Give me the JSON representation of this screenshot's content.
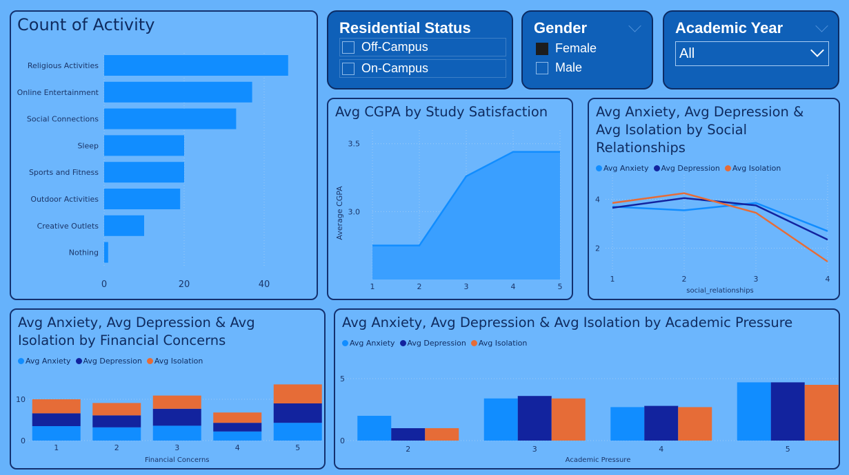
{
  "colors": {
    "anxiety": "#118dff",
    "depression": "#12239e",
    "isolation": "#e66c37",
    "bar": "#118dff",
    "area": "#3a9fff"
  },
  "slicers": {
    "residential": {
      "title": "Residential Status",
      "options": [
        "Off-Campus",
        "On-Campus"
      ]
    },
    "gender": {
      "title": "Gender",
      "options": [
        "Female",
        "Male"
      ],
      "selected": "Female"
    },
    "academic_year": {
      "title": "Academic Year",
      "value": "All"
    }
  },
  "chart_data": [
    {
      "id": "activity",
      "type": "bar",
      "title": "Count of Activity",
      "categories": [
        "Religious Activities",
        "Online Entertainment",
        "Social Connections",
        "Sleep",
        "Sports and Fitness",
        "Outdoor Activities",
        "Creative Outlets",
        "Nothing"
      ],
      "values": [
        46,
        37,
        33,
        20,
        20,
        19,
        10,
        1
      ],
      "xticks": [
        "0",
        "20",
        "40"
      ],
      "xlim": [
        0,
        50
      ]
    },
    {
      "id": "cgpa",
      "type": "area",
      "title": "Avg CGPA by Study Satisfaction",
      "ylabel": "Average CGPA",
      "x": [
        "1",
        "2",
        "3",
        "4",
        "5"
      ],
      "values": [
        2.75,
        2.75,
        3.26,
        3.44,
        3.44
      ],
      "yticks": [
        "3.0",
        "3.5"
      ],
      "ylim": [
        2.5,
        3.6
      ]
    },
    {
      "id": "social",
      "type": "line",
      "title": "Avg Anxiety, Avg Depression & Avg Isolation by Social Relationships",
      "title_lines": [
        "Avg Anxiety, Avg Depression &",
        "Avg Isolation by Social",
        "Relationships"
      ],
      "xlabel": "social_relationships",
      "x": [
        "1",
        "2",
        "3",
        "4"
      ],
      "yticks": [
        "2",
        "4"
      ],
      "ylim": [
        1,
        5
      ],
      "series": [
        {
          "name": "Avg Anxiety",
          "values": [
            3.7,
            3.55,
            3.85,
            2.7
          ]
        },
        {
          "name": "Avg Depression",
          "values": [
            3.65,
            4.05,
            3.75,
            2.35
          ]
        },
        {
          "name": "Avg Isolation",
          "values": [
            3.85,
            4.25,
            3.45,
            1.45
          ]
        }
      ]
    },
    {
      "id": "financial",
      "type": "stacked-bar",
      "title": "Avg Anxiety, Avg Depression & Avg Isolation by Financial Concerns",
      "title_lines": [
        "Avg Anxiety, Avg Depression & Avg",
        "Isolation by Financial Concerns"
      ],
      "xlabel": "Financial Concerns",
      "categories": [
        "1",
        "2",
        "3",
        "4",
        "5"
      ],
      "yticks": [
        "0",
        "10"
      ],
      "ylim": [
        0,
        15
      ],
      "series": [
        {
          "name": "Avg Anxiety",
          "values": [
            3.5,
            3.2,
            3.6,
            2.2,
            4.3
          ]
        },
        {
          "name": "Avg Depression",
          "values": [
            3.1,
            2.9,
            4.1,
            2.1,
            4.7
          ]
        },
        {
          "name": "Avg Isolation",
          "values": [
            3.4,
            3.0,
            3.2,
            2.5,
            4.6
          ]
        }
      ]
    },
    {
      "id": "academic",
      "type": "bar",
      "title": "Avg Anxiety, Avg Depression & Avg Isolation by Academic Pressure",
      "xlabel": "Academic Pressure",
      "categories": [
        "2",
        "3",
        "4",
        "5"
      ],
      "yticks": [
        "0",
        "5"
      ],
      "ylim": [
        0,
        5.5
      ],
      "series": [
        {
          "name": "Avg Anxiety",
          "values": [
            2.0,
            3.4,
            2.7,
            4.7
          ]
        },
        {
          "name": "Avg Depression",
          "values": [
            1.0,
            3.6,
            2.8,
            4.7
          ]
        },
        {
          "name": "Avg Isolation",
          "values": [
            1.0,
            3.4,
            2.7,
            4.5
          ]
        }
      ]
    }
  ]
}
